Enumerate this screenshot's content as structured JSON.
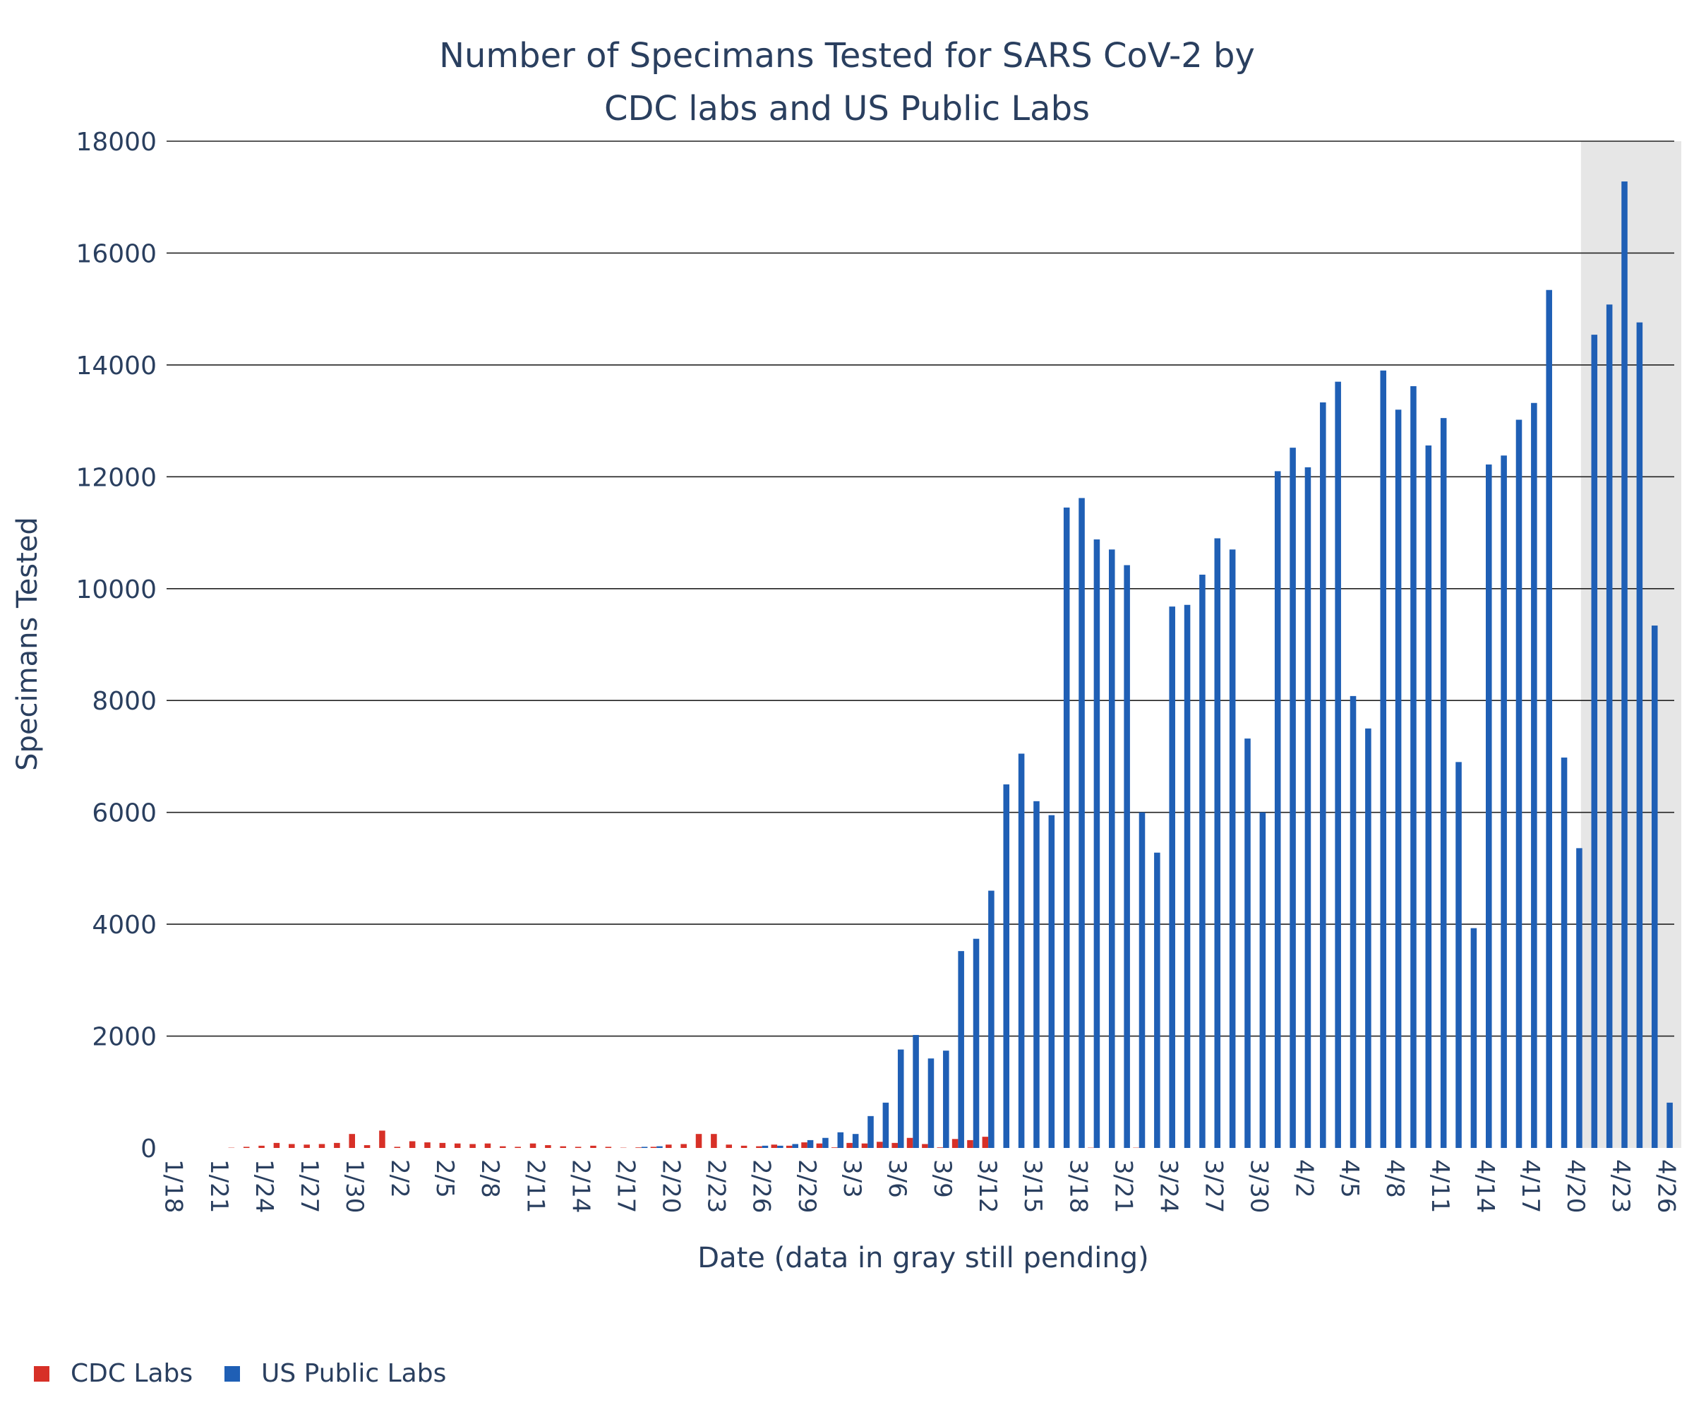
{
  "chart_data": {
    "type": "bar",
    "title_lines": [
      "Number of Specimans Tested for SARS CoV-2 by",
      "CDC labs and US Public Labs"
    ],
    "xlabel": "Date (data in gray still pending)",
    "ylabel": "Specimans Tested",
    "ylim": [
      0,
      18000
    ],
    "yticks": [
      0,
      2000,
      4000,
      6000,
      8000,
      10000,
      12000,
      14000,
      16000,
      18000
    ],
    "grid": true,
    "legend_position": "bottom-left",
    "pending_region": {
      "from": "4/21",
      "to": "4/26"
    },
    "x_tick_labels": [
      "1/18",
      "1/21",
      "1/24",
      "1/27",
      "1/30",
      "2/2",
      "2/5",
      "2/8",
      "2/11",
      "2/14",
      "2/17",
      "2/20",
      "2/23",
      "2/26",
      "2/29",
      "3/3",
      "3/6",
      "3/9",
      "3/12",
      "3/15",
      "3/18",
      "3/21",
      "3/24",
      "3/27",
      "3/30",
      "4/2",
      "4/5",
      "4/8",
      "4/11",
      "4/14",
      "4/17",
      "4/20",
      "4/23",
      "4/26"
    ],
    "categories": [
      "1/18",
      "1/19",
      "1/20",
      "1/21",
      "1/22",
      "1/23",
      "1/24",
      "1/25",
      "1/26",
      "1/27",
      "1/28",
      "1/29",
      "1/30",
      "1/31",
      "2/1",
      "2/2",
      "2/3",
      "2/4",
      "2/5",
      "2/6",
      "2/7",
      "2/8",
      "2/9",
      "2/10",
      "2/11",
      "2/12",
      "2/13",
      "2/14",
      "2/15",
      "2/16",
      "2/17",
      "2/18",
      "2/19",
      "2/20",
      "2/21",
      "2/22",
      "2/23",
      "2/24",
      "2/25",
      "2/26",
      "2/27",
      "2/28",
      "2/29",
      "3/1",
      "3/2",
      "3/3",
      "3/4",
      "3/5",
      "3/6",
      "3/7",
      "3/8",
      "3/9",
      "3/10",
      "3/11",
      "3/12",
      "3/13",
      "3/14",
      "3/15",
      "3/16",
      "3/17",
      "3/18",
      "3/19",
      "3/20",
      "3/21",
      "3/22",
      "3/23",
      "3/24",
      "3/25",
      "3/26",
      "3/27",
      "3/28",
      "3/29",
      "3/30",
      "3/31",
      "4/1",
      "4/2",
      "4/3",
      "4/4",
      "4/5",
      "4/6",
      "4/7",
      "4/8",
      "4/9",
      "4/10",
      "4/11",
      "4/12",
      "4/13",
      "4/14",
      "4/15",
      "4/16",
      "4/17",
      "4/18",
      "4/19",
      "4/20",
      "4/21",
      "4/22",
      "4/23",
      "4/24",
      "4/25",
      "4/26"
    ],
    "series": [
      {
        "name": "CDC Labs",
        "color": "#d73027",
        "values": [
          0,
          0,
          0,
          0,
          5,
          20,
          40,
          90,
          70,
          60,
          70,
          90,
          250,
          50,
          310,
          20,
          120,
          100,
          90,
          80,
          70,
          80,
          30,
          20,
          80,
          50,
          30,
          20,
          40,
          20,
          5,
          10,
          20,
          60,
          70,
          250,
          250,
          60,
          40,
          30,
          60,
          40,
          100,
          80,
          10,
          90,
          80,
          110,
          90,
          180,
          70,
          10,
          160,
          140,
          200,
          0,
          0,
          0,
          0,
          0,
          0,
          5,
          0,
          0,
          5,
          0,
          0,
          0,
          0,
          0,
          0,
          0,
          0,
          0,
          0,
          0,
          0,
          0,
          0,
          0,
          0,
          0,
          0,
          0,
          0,
          0,
          0,
          0,
          0,
          0,
          0,
          0,
          0,
          0,
          0,
          0,
          0,
          0,
          0,
          0
        ]
      },
      {
        "name": "US Public Labs",
        "color": "#1f5fb5",
        "values": [
          0,
          0,
          0,
          0,
          0,
          0,
          0,
          0,
          0,
          0,
          0,
          0,
          0,
          0,
          0,
          0,
          0,
          0,
          0,
          0,
          0,
          0,
          0,
          0,
          0,
          0,
          0,
          0,
          0,
          0,
          0,
          20,
          30,
          0,
          0,
          0,
          0,
          0,
          0,
          40,
          40,
          70,
          140,
          180,
          280,
          250,
          570,
          810,
          1760,
          2020,
          1600,
          1740,
          3520,
          3740,
          4600,
          6500,
          7050,
          6200,
          5950,
          11450,
          11620,
          10880,
          10700,
          10420,
          6000,
          5280,
          9680,
          9710,
          10250,
          10900,
          10700,
          7320,
          6000,
          12100,
          12520,
          12170,
          13330,
          13700,
          8080,
          7500,
          13900,
          13200,
          13620,
          12560,
          13050,
          6900,
          3930,
          12220,
          12380,
          13020,
          13320,
          15340,
          6980,
          5360,
          14540,
          15080,
          17280,
          14760,
          9340,
          810
        ]
      }
    ]
  }
}
